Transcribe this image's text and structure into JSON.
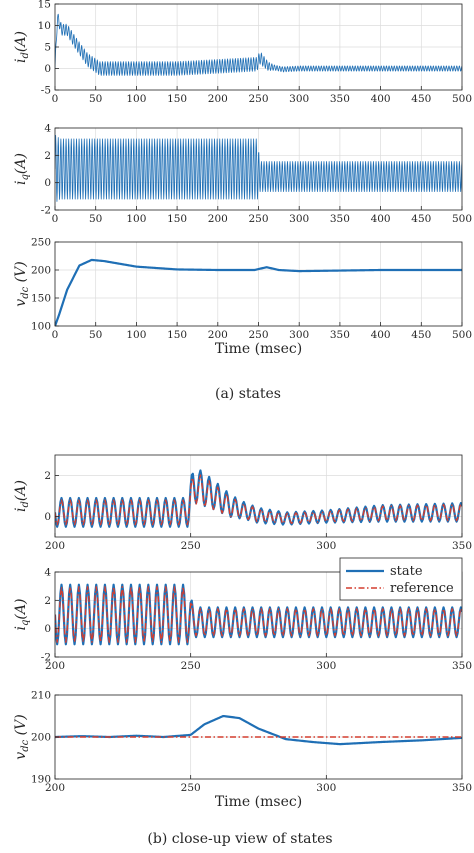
{
  "figure": {
    "caption_a": "(a) states",
    "caption_b": "(b) close-up view of states"
  },
  "chart_data": [
    {
      "type": "line",
      "panel": "a1",
      "ylabel": "i_d(A)",
      "xlabel": "",
      "xlim": [
        0,
        500
      ],
      "ylim": [
        -5,
        15
      ],
      "xticks": [
        0,
        50,
        100,
        150,
        200,
        250,
        300,
        350,
        400,
        450,
        500
      ],
      "yticks": [
        -5,
        0,
        5,
        10,
        15
      ],
      "grid": true,
      "legend": "none",
      "series": [
        {
          "key": "state",
          "color": "#1f6fb5",
          "points": [
            [
              0,
              0
            ],
            [
              3,
              12
            ],
            [
              8,
              9
            ],
            [
              15,
              9
            ],
            [
              25,
              6
            ],
            [
              40,
              2
            ],
            [
              55,
              0
            ],
            [
              80,
              0
            ],
            [
              150,
              0
            ],
            [
              200,
              0.5
            ],
            [
              248,
              1
            ],
            [
              252,
              2.5
            ],
            [
              262,
              0.5
            ],
            [
              280,
              -0.2
            ],
            [
              300,
              0
            ],
            [
              400,
              0
            ],
            [
              500,
              0
            ]
          ],
          "osc_amp": [
            [
              0,
              1.2
            ],
            [
              50,
              1.6
            ],
            [
              248,
              1.6
            ],
            [
              252,
              1.5
            ],
            [
              270,
              0.6
            ],
            [
              320,
              0.6
            ],
            [
              500,
              0.6
            ]
          ],
          "osc_period": 3.2
        }
      ]
    },
    {
      "type": "line",
      "panel": "a2",
      "ylabel": "i_q(A)",
      "xlabel": "",
      "xlim": [
        0,
        500
      ],
      "ylim": [
        -2,
        4
      ],
      "xticks": [
        0,
        50,
        100,
        150,
        200,
        250,
        300,
        350,
        400,
        450,
        500
      ],
      "yticks": [
        -2,
        0,
        2,
        4
      ],
      "grid": true,
      "legend": "none",
      "series": [
        {
          "key": "state",
          "color": "#1f6fb5",
          "points": [
            [
              0,
              1
            ],
            [
              250,
              1
            ],
            [
              251,
              0.45
            ],
            [
              500,
              0.45
            ]
          ],
          "osc_amp": [
            [
              0,
              2.5
            ],
            [
              6,
              2.2
            ],
            [
              249,
              2.2
            ],
            [
              251,
              1.1
            ],
            [
              500,
              1.1
            ]
          ],
          "osc_period": 3.2
        }
      ]
    },
    {
      "type": "line",
      "panel": "a3",
      "ylabel": "v_dc (V)",
      "xlabel": "Time (msec)",
      "xlim": [
        0,
        500
      ],
      "ylim": [
        100,
        250
      ],
      "xticks": [
        0,
        50,
        100,
        150,
        200,
        250,
        300,
        350,
        400,
        450,
        500
      ],
      "yticks": [
        100,
        150,
        200,
        250
      ],
      "grid": true,
      "legend": "none",
      "series": [
        {
          "key": "state",
          "color": "#1f6fb5",
          "points": [
            [
              0,
              100
            ],
            [
              5,
              120
            ],
            [
              15,
              165
            ],
            [
              30,
              208
            ],
            [
              45,
              218
            ],
            [
              60,
              216
            ],
            [
              100,
              206
            ],
            [
              150,
              201
            ],
            [
              200,
              200
            ],
            [
              245,
              200
            ],
            [
              260,
              205
            ],
            [
              275,
              200
            ],
            [
              300,
              198
            ],
            [
              400,
              200
            ],
            [
              500,
              200
            ]
          ]
        }
      ]
    },
    {
      "type": "line",
      "panel": "b1",
      "ylabel": "i_d(A)",
      "xlabel": "",
      "xlim": [
        200,
        350
      ],
      "ylim": [
        -1,
        3
      ],
      "xticks": [
        200,
        250,
        300,
        350
      ],
      "yticks": [
        0,
        2
      ],
      "grid": true,
      "legend": "none",
      "series": [
        {
          "key": "state",
          "color": "#1f6fb5",
          "points": [
            [
              200,
              0.2
            ],
            [
              249,
              0.2
            ],
            [
              251,
              1.6
            ],
            [
              258,
              1.1
            ],
            [
              265,
              0.5
            ],
            [
              275,
              0.05
            ],
            [
              285,
              -0.1
            ],
            [
              300,
              0
            ],
            [
              320,
              0.15
            ],
            [
              350,
              0.2
            ]
          ],
          "osc_amp": [
            [
              200,
              0.7
            ],
            [
              249,
              0.7
            ],
            [
              251,
              0.9
            ],
            [
              270,
              0.4
            ],
            [
              285,
              0.3
            ],
            [
              300,
              0.3
            ],
            [
              320,
              0.4
            ],
            [
              350,
              0.45
            ]
          ],
          "osc_period": 3.2
        },
        {
          "key": "reference",
          "color": "#d43d2f",
          "dash": "6,2.5,1.5,2.5",
          "points": [
            [
              200,
              0.2
            ],
            [
              249,
              0.2
            ],
            [
              251,
              1.45
            ],
            [
              258,
              1.0
            ],
            [
              265,
              0.45
            ],
            [
              275,
              0.05
            ],
            [
              285,
              -0.1
            ],
            [
              300,
              0
            ],
            [
              320,
              0.15
            ],
            [
              350,
              0.2
            ]
          ],
          "osc_amp": [
            [
              200,
              0.6
            ],
            [
              249,
              0.6
            ],
            [
              251,
              0.8
            ],
            [
              270,
              0.35
            ],
            [
              285,
              0.25
            ],
            [
              300,
              0.25
            ],
            [
              320,
              0.35
            ],
            [
              350,
              0.4
            ]
          ],
          "osc_period": 3.2
        }
      ]
    },
    {
      "type": "line",
      "panel": "b2",
      "ylabel": "i_q(A)",
      "xlabel": "",
      "xlim": [
        200,
        350
      ],
      "ylim": [
        -2,
        4
      ],
      "xticks": [
        200,
        250,
        300,
        350
      ],
      "yticks": [
        -2,
        0,
        2,
        4
      ],
      "grid": true,
      "legend": "top-right",
      "series": [
        {
          "key": "state",
          "name": "state",
          "color": "#1f6fb5",
          "points": [
            [
              200,
              1
            ],
            [
              249,
              1
            ],
            [
              251,
              0.45
            ],
            [
              350,
              0.45
            ]
          ],
          "osc_amp": [
            [
              200,
              2.1
            ],
            [
              249,
              2.1
            ],
            [
              251,
              1.05
            ],
            [
              350,
              1.05
            ]
          ],
          "osc_period": 3.2
        },
        {
          "key": "reference",
          "name": "reference",
          "color": "#d43d2f",
          "dash": "6,2.5,1.5,2.5",
          "points": [
            [
              200,
              1
            ],
            [
              249,
              1
            ],
            [
              251,
              0.45
            ],
            [
              350,
              0.45
            ]
          ],
          "osc_amp": [
            [
              200,
              1.95
            ],
            [
              249,
              1.95
            ],
            [
              251,
              0.95
            ],
            [
              350,
              0.95
            ]
          ],
          "osc_period": 3.2
        }
      ]
    },
    {
      "type": "line",
      "panel": "b3",
      "ylabel": "v_dc (V)",
      "xlabel": "Time (msec)",
      "xlim": [
        200,
        350
      ],
      "ylim": [
        190,
        210
      ],
      "xticks": [
        200,
        250,
        300,
        350
      ],
      "yticks": [
        190,
        200,
        210
      ],
      "grid": true,
      "legend": "none",
      "series": [
        {
          "key": "state",
          "color": "#1f6fb5",
          "points": [
            [
              200,
              200
            ],
            [
              210,
              200.2
            ],
            [
              220,
              200
            ],
            [
              230,
              200.3
            ],
            [
              240,
              200
            ],
            [
              250,
              200.5
            ],
            [
              255,
              203
            ],
            [
              262,
              205
            ],
            [
              268,
              204.5
            ],
            [
              275,
              202
            ],
            [
              285,
              199.5
            ],
            [
              295,
              198.8
            ],
            [
              305,
              198.3
            ],
            [
              320,
              198.8
            ],
            [
              335,
              199.2
            ],
            [
              350,
              199.8
            ]
          ]
        },
        {
          "key": "reference",
          "color": "#d43d2f",
          "dash": "6,2.5,1.5,2.5",
          "points": [
            [
              200,
              200
            ],
            [
              350,
              200
            ]
          ]
        }
      ]
    }
  ]
}
